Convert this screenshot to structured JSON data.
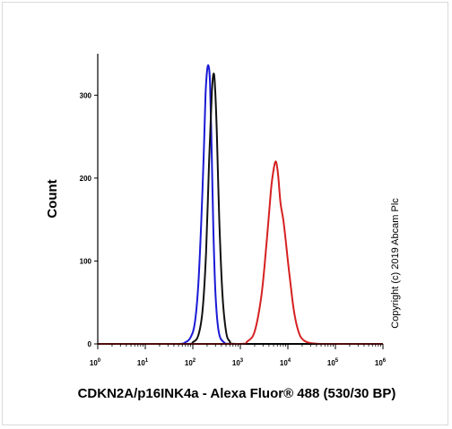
{
  "chart_data": {
    "type": "line",
    "xlabel": "CDKN2A/p16INK4a - Alexa Fluor® 488 (530/30 BP)",
    "ylabel": "Count",
    "x_scale": "log",
    "xlim": [
      1,
      1000000
    ],
    "ylim": [
      0,
      350
    ],
    "y_ticks": [
      0,
      100,
      200,
      300
    ],
    "x_ticks": [
      {
        "base": "10",
        "exp": "0",
        "value": 1
      },
      {
        "base": "10",
        "exp": "1",
        "value": 10
      },
      {
        "base": "10",
        "exp": "2",
        "value": 100
      },
      {
        "base": "10",
        "exp": "3",
        "value": 1000
      },
      {
        "base": "10",
        "exp": "4",
        "value": 10000
      },
      {
        "base": "10",
        "exp": "5",
        "value": 100000
      },
      {
        "base": "10",
        "exp": "6",
        "value": 1000000
      }
    ],
    "grid": false,
    "legend": "none",
    "series": [
      {
        "color": "#1a1ad6",
        "x": [
          1,
          10,
          50,
          70,
          90,
          110,
          130,
          150,
          170,
          185,
          200,
          215,
          230,
          250,
          270,
          300,
          350,
          450,
          700,
          10000,
          1000000
        ],
        "y": [
          0,
          0,
          0,
          2,
          8,
          25,
          70,
          145,
          230,
          300,
          330,
          335,
          315,
          230,
          140,
          60,
          15,
          2,
          0,
          0,
          0
        ]
      },
      {
        "color": "#111111",
        "x": [
          1,
          10,
          80,
          100,
          130,
          160,
          190,
          220,
          250,
          270,
          290,
          320,
          360,
          420,
          500,
          600,
          800,
          10000,
          1000000
        ],
        "y": [
          0,
          0,
          0,
          2,
          10,
          40,
          110,
          220,
          300,
          325,
          315,
          255,
          150,
          60,
          15,
          3,
          0,
          0,
          0
        ]
      },
      {
        "color": "#d62020",
        "x": [
          1,
          10,
          100,
          1000,
          1400,
          2000,
          2800,
          3600,
          4400,
          5000,
          5600,
          6200,
          7000,
          8000,
          9000,
          10000,
          11500,
          13000,
          15000,
          18000,
          22000,
          30000,
          50000,
          100000,
          1000000
        ],
        "y": [
          0,
          0,
          0,
          0,
          3,
          15,
          60,
          125,
          185,
          210,
          220,
          205,
          170,
          150,
          125,
          100,
          70,
          45,
          25,
          10,
          4,
          1,
          0,
          0,
          0
        ]
      }
    ]
  },
  "copyright": "Copyright (c) 2019 Abcam Plc"
}
